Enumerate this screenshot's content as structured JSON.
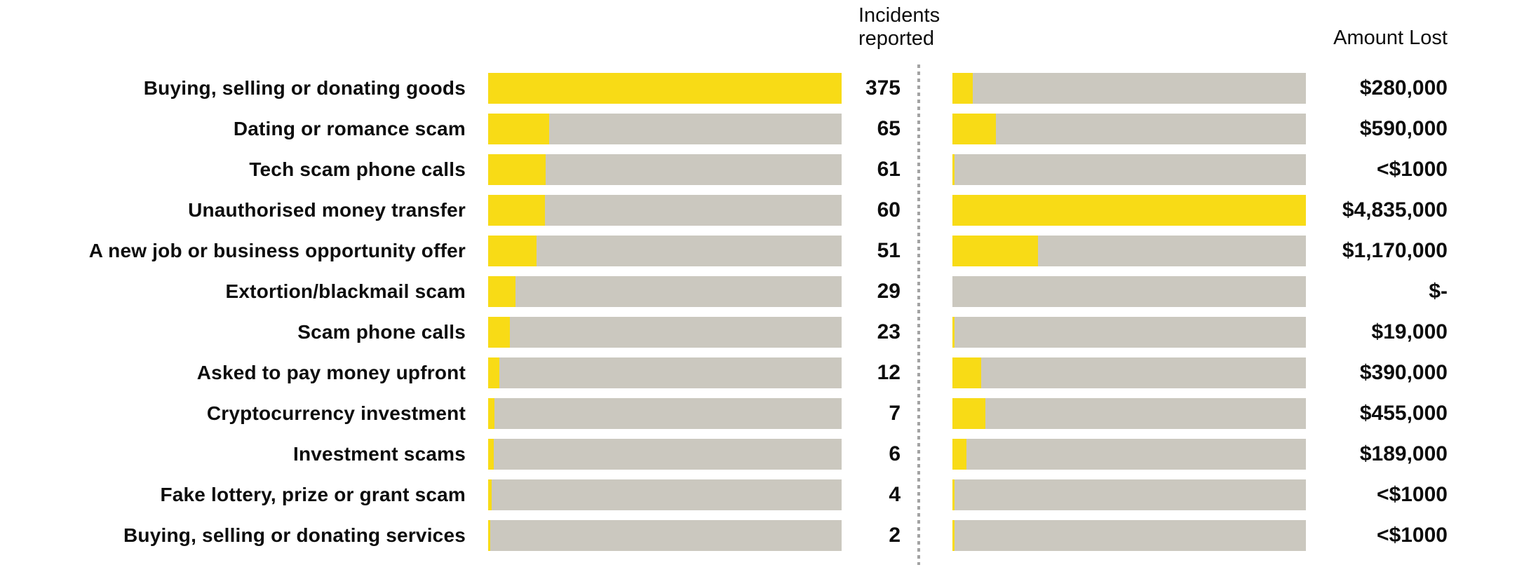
{
  "headers": {
    "incidents_col": "Incidents\nreported",
    "amount_col": "Amount Lost"
  },
  "colors": {
    "bar_fill": "#f8db16",
    "bar_track": "#cbc8bf",
    "divider": "#a3a3a3",
    "text": "#0d0d0d"
  },
  "chart_data": {
    "type": "bar",
    "orientation": "horizontal",
    "legend_position": "none",
    "grid": false,
    "categories": [
      "Buying, selling or donating goods",
      "Dating or romance scam",
      "Tech scam phone calls",
      "Unauthorised money transfer",
      "A new job or business opportunity offer",
      "Extortion/blackmail scam",
      "Scam phone calls",
      "Asked to pay money upfront",
      "Cryptocurrency investment",
      "Investment scams",
      "Fake lottery, prize or grant scam",
      "Buying, selling or donating services"
    ],
    "series": [
      {
        "name": "Incidents reported",
        "axis_max": 375,
        "values": [
          375,
          65,
          61,
          60,
          51,
          29,
          23,
          12,
          7,
          6,
          4,
          2
        ],
        "value_labels": [
          "375",
          "65",
          "61",
          "60",
          "51",
          "29",
          "23",
          "12",
          "7",
          "6",
          "4",
          "2"
        ]
      },
      {
        "name": "Amount Lost",
        "axis_max": 4835000,
        "values": [
          280000,
          590000,
          1000,
          4835000,
          1170000,
          0,
          19000,
          390000,
          455000,
          189000,
          1000,
          1000
        ],
        "value_labels": [
          "$280,000",
          "$590,000",
          "<$1000",
          "$4,835,000",
          "$1,170,000",
          "$-",
          "$19,000",
          "$390,000",
          "$455,000",
          "$189,000",
          "<$1000",
          "<$1000"
        ]
      }
    ]
  }
}
